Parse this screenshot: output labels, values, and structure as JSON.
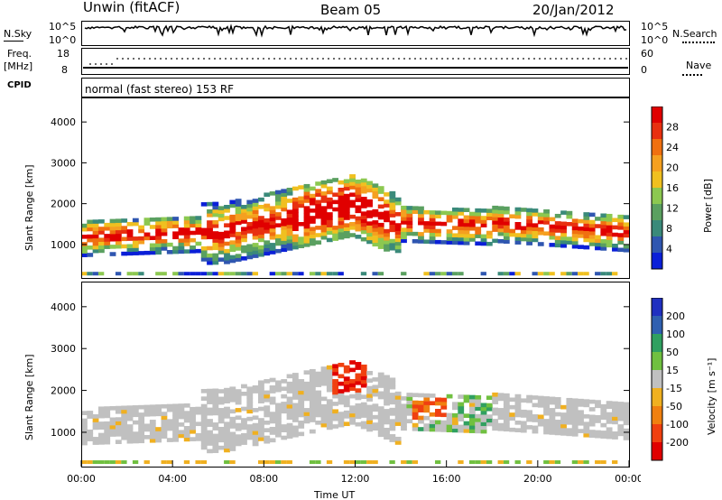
{
  "header": {
    "station": "Unwin (fitACF)",
    "beam": "Beam 05",
    "date": "20/Jan/2012"
  },
  "top_panels": {
    "nsky_label": "N.Sky",
    "nsky_ticks": [
      "10^5",
      "10^0"
    ],
    "nsearch_label": "N.Search",
    "nsearch_ticks": [
      "10^5",
      "10^0"
    ],
    "freq_label": "Freq.",
    "freq_unit": "[MHz]",
    "freq_ticks": [
      "18",
      "8"
    ],
    "nave_label": "Nave",
    "nave_ticks": [
      "60",
      "0"
    ],
    "cpid_label": "CPID",
    "cpid_text": "normal (fast stereo) 153 RF"
  },
  "chart_data": [
    {
      "type": "heatmap",
      "name": "power",
      "ylabel": "Slant Range [km]",
      "ylim": [
        180,
        4600
      ],
      "yticks": [
        "1000",
        "2000",
        "3000",
        "4000"
      ],
      "xticks": [
        "00:00",
        "04:00",
        "08:00",
        "12:00",
        "16:00",
        "20:00",
        "00:00"
      ],
      "xlim_hours": [
        0,
        24
      ],
      "colorbar": {
        "label": "Power [dB]",
        "ticks": [
          "4",
          "8",
          "12",
          "16",
          "20",
          "24",
          "28"
        ],
        "colors": [
          "#0a1fd8",
          "#2f56b0",
          "#3a8a7a",
          "#5aa060",
          "#8cc850",
          "#f0c020",
          "#f5a020",
          "#f07010",
          "#e83010",
          "#e00000"
        ]
      }
    },
    {
      "type": "heatmap",
      "name": "velocity",
      "ylabel": "Slant Range [km]",
      "ylim": [
        180,
        4600
      ],
      "yticks": [
        "1000",
        "2000",
        "3000",
        "4000"
      ],
      "xticks": [
        "00:00",
        "04:00",
        "08:00",
        "12:00",
        "16:00",
        "20:00",
        "00:00"
      ],
      "xlabel": "Time UT",
      "xlim_hours": [
        0,
        24
      ],
      "colorbar": {
        "label": "Velocity [m s⁻¹]",
        "ticks": [
          "200",
          "100",
          "50",
          "15",
          "-15",
          "-50",
          "-100",
          "-200"
        ],
        "colors": [
          "#2030c0",
          "#3060b0",
          "#30a060",
          "#70c040",
          "#c0c0c0",
          "#f0b020",
          "#f08010",
          "#f04010",
          "#e00000"
        ]
      }
    }
  ]
}
